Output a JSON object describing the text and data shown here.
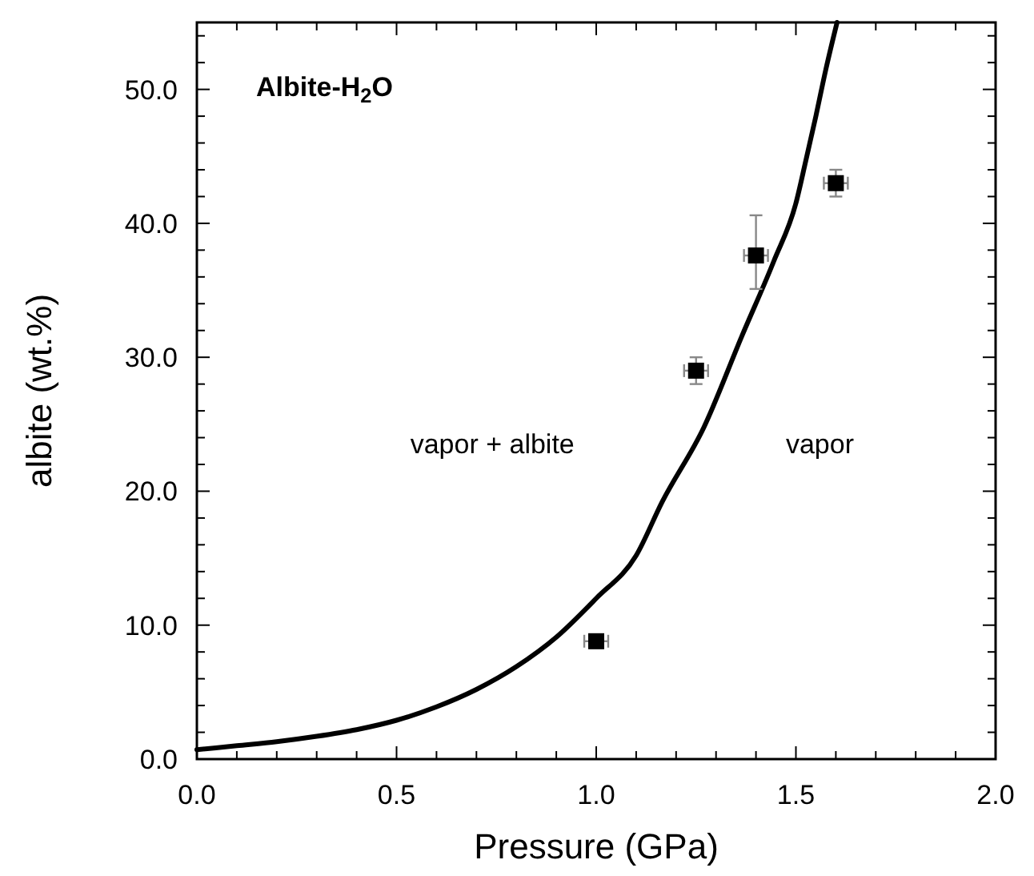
{
  "chart_data": {
    "type": "scatter",
    "title": "Albite-H$_{2}$O",
    "xlabel": "Pressure (GPa)",
    "ylabel": "albite (wt.%)",
    "annotations": [
      "vapor + albite",
      "vapor"
    ],
    "xlim": [
      0,
      2.0
    ],
    "ylim": [
      0,
      55
    ],
    "xticks": [
      {
        "value": 0,
        "label": "0.0"
      },
      {
        "value": 0.1,
        "label": null
      },
      {
        "value": 0.2,
        "label": null
      },
      {
        "value": 0.3,
        "label": null
      },
      {
        "value": 0.4,
        "label": null
      },
      {
        "value": 0.5,
        "label": "0.5"
      },
      {
        "value": 0.6,
        "label": null
      },
      {
        "value": 0.7,
        "label": null
      },
      {
        "value": 0.8,
        "label": null
      },
      {
        "value": 0.9,
        "label": null
      },
      {
        "value": 1.0,
        "label": "1.0"
      },
      {
        "value": 1.1,
        "label": null
      },
      {
        "value": 1.2,
        "label": null
      },
      {
        "value": 1.3,
        "label": null
      },
      {
        "value": 1.4,
        "label": null
      },
      {
        "value": 1.5,
        "label": "1.5"
      },
      {
        "value": 1.6,
        "label": null
      },
      {
        "value": 1.7,
        "label": null
      },
      {
        "value": 1.8,
        "label": null
      },
      {
        "value": 1.9,
        "label": null
      },
      {
        "value": 2.0,
        "label": "2.0"
      }
    ],
    "yticks": [
      {
        "value": 0,
        "label": "0.0"
      },
      {
        "value": 2,
        "label": null
      },
      {
        "value": 4,
        "label": null
      },
      {
        "value": 6,
        "label": null
      },
      {
        "value": 8,
        "label": null
      },
      {
        "value": 10,
        "label": "10.0"
      },
      {
        "value": 12,
        "label": null
      },
      {
        "value": 14,
        "label": null
      },
      {
        "value": 16,
        "label": null
      },
      {
        "value": 18,
        "label": null
      },
      {
        "value": 20,
        "label": "20.0"
      },
      {
        "value": 22,
        "label": null
      },
      {
        "value": 24,
        "label": null
      },
      {
        "value": 26,
        "label": null
      },
      {
        "value": 28,
        "label": null
      },
      {
        "value": 30,
        "label": "30.0"
      },
      {
        "value": 32,
        "label": null
      },
      {
        "value": 34,
        "label": null
      },
      {
        "value": 36,
        "label": null
      },
      {
        "value": 38,
        "label": null
      },
      {
        "value": 40,
        "label": "40.0"
      },
      {
        "value": 42,
        "label": null
      },
      {
        "value": 44,
        "label": null
      },
      {
        "value": 46,
        "label": null
      },
      {
        "value": 48,
        "label": null
      },
      {
        "value": 50,
        "label": "50.0"
      },
      {
        "value": 52,
        "label": null
      },
      {
        "value": 54,
        "label": null
      }
    ],
    "grid": false,
    "series": [
      {
        "type": "line",
        "color": "#000000",
        "marker": "none",
        "line_style": "solid",
        "x": [
          0,
          0.1,
          0.2,
          0.3,
          0.4,
          0.5,
          0.6,
          0.7,
          0.8,
          0.9,
          1.0,
          1.1,
          1.165,
          1.27,
          1.365,
          1.445,
          1.5,
          1.525,
          1.55,
          1.575,
          1.603
        ],
        "values": [
          0.7,
          1.0,
          1.3,
          1.7,
          2.2,
          2.9,
          3.9,
          5.2,
          6.9,
          9.1,
          12.0,
          15.2,
          19.2,
          24.8,
          31.6,
          37.2,
          41.5,
          44.7,
          48.0,
          51.5,
          55.0
        ]
      },
      {
        "color": "#000000",
        "marker": "square",
        "x": [
          1.0,
          1.25,
          1.4,
          1.6
        ],
        "values": [
          8.8,
          29.0,
          37.6,
          43.0
        ],
        "errors": [
          0.5,
          1.0,
          [
            35.1,
            40.6
          ],
          1.0
        ],
        "xerrors": [
          0.03,
          0.03,
          0.03,
          0.03
        ]
      }
    ]
  }
}
